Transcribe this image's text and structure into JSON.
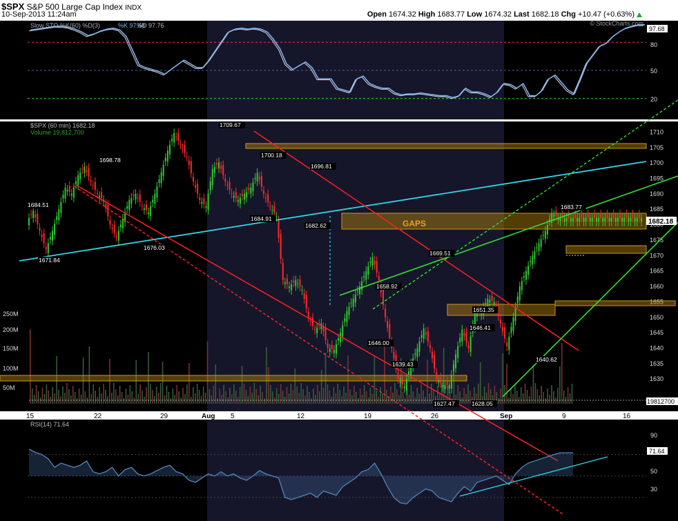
{
  "header": {
    "symbol": "$SPX",
    "name": "S&P 500 Large Cap Index",
    "exchange": "INDX",
    "datetime": "10-Sep-2013 11:24am",
    "open_label": "Open",
    "open": "1674.32",
    "high_label": "High",
    "high": "1683.77",
    "low_label": "Low",
    "low": "1674.32",
    "last_label": "Last",
    "last": "1682.18",
    "chg_label": "Chg",
    "chg": "+10.47 (+0.63%)",
    "watermark": "© StockCharts.com"
  },
  "colors": {
    "background": "#000000",
    "band": "#1c1c2e",
    "price_candles_up": "#2ecc2e",
    "price_candles_down": "#ff2a2a",
    "trend_red": "#ff2020",
    "trend_cyan": "#33d6e8",
    "trend_green": "#33e033",
    "gap_box": "#b8860b",
    "stoch_line": "#7fb2e8",
    "rsi_line": "#4f7fb0",
    "volume_bars": "#5a5a6a"
  },
  "chart_data": [
    {
      "type": "line",
      "title": "Slow STO %K(60) %D(3)",
      "legend": [
        "%K 97.68",
        "%D 97.76"
      ],
      "current_value_tag": "97.68",
      "ylim": [
        0,
        100
      ],
      "y_ticks": [
        "80",
        "50",
        "20"
      ],
      "reference_lines": [
        {
          "value": 80,
          "color": "red",
          "style": "dashed"
        },
        {
          "value": 50,
          "color": "blue",
          "style": "dashed"
        },
        {
          "value": 20,
          "color": "green",
          "style": "dashed"
        }
      ],
      "series": [
        {
          "name": "%K",
          "x": [
            0,
            2,
            4,
            6,
            8,
            10,
            12,
            14,
            16,
            18,
            20,
            22,
            24,
            26,
            28,
            30,
            32,
            34,
            36,
            38,
            40,
            42,
            44,
            46,
            48,
            50,
            52,
            54,
            56,
            58,
            60,
            62,
            64,
            66,
            68,
            70,
            72,
            74,
            76,
            78,
            80,
            82,
            84,
            86,
            88,
            90,
            92,
            94,
            96,
            98,
            100,
            102,
            104,
            106,
            108,
            110,
            112,
            114,
            116,
            118,
            120,
            122,
            124,
            126,
            128,
            130,
            132,
            134,
            136,
            138,
            140,
            142,
            144,
            146,
            148,
            150,
            152,
            154,
            156,
            158,
            160,
            162,
            164,
            166,
            168,
            170,
            172,
            174,
            176,
            178,
            180,
            182,
            184,
            186,
            188,
            190,
            192
          ],
          "values": [
            92,
            93,
            94,
            95,
            96,
            96,
            95,
            93,
            90,
            86,
            88,
            91,
            93,
            94,
            92,
            85,
            70,
            55,
            52,
            50,
            48,
            45,
            50,
            55,
            60,
            56,
            52,
            52,
            60,
            70,
            80,
            90,
            93,
            94,
            93,
            94,
            93,
            90,
            82,
            72,
            56,
            50,
            54,
            58,
            52,
            40,
            40,
            40,
            30,
            28,
            26,
            40,
            43,
            35,
            32,
            30,
            30,
            25,
            23,
            24,
            24,
            25,
            24,
            23,
            22,
            22,
            20,
            22,
            30,
            26,
            26,
            24,
            21,
            26,
            35,
            34,
            30,
            35,
            22,
            22,
            28,
            40,
            44,
            36,
            28,
            24,
            40,
            57,
            66,
            75,
            78,
            85,
            90,
            94,
            96,
            97.7,
            97.7
          ]
        }
      ]
    },
    {
      "type": "line",
      "title": "$SPX (60 min) 1682.18",
      "volume_label": "Volume 19,812,700",
      "current_value_tag": "1682.18",
      "volume_tag": "19812700",
      "ylim": [
        1622,
        1713
      ],
      "y_ticks": [
        "1710",
        "1705",
        "1700",
        "1695",
        "1690",
        "1685",
        "1680",
        "1675",
        "1670",
        "1665",
        "1660",
        "1655",
        "1650",
        "1645",
        "1640",
        "1635",
        "1630"
      ],
      "volume_ticks": [
        "250M",
        "200M",
        "150M",
        "100M",
        "50M"
      ],
      "x_ticks": [
        "15",
        "22",
        "29",
        "Aug",
        "5",
        "12",
        "19",
        "26",
        "Sep",
        "9",
        "16"
      ],
      "price_annotations": [
        "1684.51",
        "1698.78",
        "1671.84",
        "1676.03",
        "1709.67",
        "1700.18",
        "1684.91",
        "1696.81",
        "1682.62",
        "1658.92",
        "1646.00",
        "1669.51",
        "1639.43",
        "1627.47",
        "1646.41",
        "1651.35",
        "1628.05",
        "1640.62",
        "1683.77"
      ],
      "gap_label": "GAPS",
      "series": [
        {
          "name": "$SPX",
          "x": [
            0,
            2,
            4,
            6,
            8,
            10,
            12,
            14,
            16,
            18,
            20,
            22,
            24,
            26,
            28,
            30,
            32,
            34,
            36,
            38,
            40,
            42,
            44,
            46,
            48,
            50,
            52,
            54,
            56,
            58,
            60,
            62,
            64,
            66,
            68,
            70,
            72,
            74,
            76,
            78,
            80,
            82,
            84,
            86,
            88,
            90,
            92,
            94,
            96,
            98,
            100,
            102,
            104,
            106,
            108,
            110,
            112,
            114,
            116,
            118,
            120,
            122,
            124,
            126,
            128,
            130,
            132,
            134,
            136,
            138,
            140,
            142,
            144,
            146,
            148,
            150,
            152,
            154,
            156,
            158,
            160,
            162,
            164,
            166,
            168,
            170,
            172,
            174,
            176,
            178,
            180,
            182,
            184,
            186,
            188,
            190,
            192
          ],
          "values": [
            1681,
            1684.5,
            1678,
            1672,
            1678,
            1685,
            1692,
            1690,
            1696,
            1698.8,
            1694,
            1690,
            1688,
            1680,
            1676,
            1682,
            1688,
            1690,
            1686,
            1684,
            1690,
            1697,
            1704,
            1709.7,
            1706,
            1702,
            1694,
            1688,
            1686,
            1698,
            1700.2,
            1694,
            1690,
            1688,
            1690,
            1692,
            1696.8,
            1690,
            1686,
            1682.6,
            1662,
            1660,
            1662,
            1658.9,
            1650,
            1646,
            1648,
            1640,
            1639.4,
            1645,
            1652,
            1656,
            1660,
            1665,
            1669.5,
            1662,
            1650,
            1640,
            1630,
            1627.5,
            1635,
            1640,
            1646.4,
            1640,
            1630,
            1628,
            1628.1,
            1638,
            1646,
            1640,
            1651.4,
            1652,
            1656,
            1655,
            1648,
            1640.6,
            1650,
            1660,
            1665,
            1670,
            1674,
            1678,
            1683.8,
            1682.2,
            1682.2,
            1682.2,
            1682.2,
            1682.2,
            1682.2,
            1682.2,
            1682.2,
            1682.2,
            1682.2,
            1682.2,
            1682.2,
            1682.2,
            1682.2
          ]
        }
      ]
    },
    {
      "type": "line",
      "title": "RSI(14) 71.64",
      "current_value_tag": "71.64",
      "ylim": [
        10,
        100
      ],
      "y_ticks": [
        "90",
        "70",
        "50",
        "30"
      ],
      "series": [
        {
          "name": "RSI(14)",
          "x": [
            0,
            2,
            4,
            6,
            8,
            10,
            12,
            14,
            16,
            18,
            20,
            22,
            24,
            26,
            28,
            30,
            32,
            34,
            36,
            38,
            40,
            42,
            44,
            46,
            48,
            50,
            52,
            54,
            56,
            58,
            60,
            62,
            64,
            66,
            68,
            70,
            72,
            74,
            76,
            78,
            80,
            82,
            84,
            86,
            88,
            90,
            92,
            94,
            96,
            98,
            100,
            102,
            104,
            106,
            108,
            110,
            112,
            114,
            116,
            118,
            120,
            122,
            124,
            126,
            128,
            130,
            132,
            134,
            136,
            138,
            140,
            142,
            144,
            146,
            148,
            150,
            152,
            154,
            156,
            158,
            160,
            162,
            164,
            166,
            168,
            170,
            172,
            174,
            176,
            178,
            180,
            182,
            184,
            186,
            188,
            190,
            192
          ],
          "values": [
            75,
            72,
            70,
            66,
            58,
            62,
            60,
            58,
            60,
            64,
            54,
            52,
            54,
            58,
            50,
            56,
            58,
            52,
            50,
            52,
            55,
            58,
            60,
            54,
            52,
            46,
            44,
            48,
            52,
            50,
            54,
            50,
            52,
            48,
            46,
            50,
            55,
            52,
            50,
            48,
            30,
            28,
            30,
            32,
            34,
            30,
            36,
            34,
            32,
            40,
            44,
            48,
            54,
            56,
            62,
            52,
            40,
            30,
            25,
            24,
            30,
            34,
            38,
            36,
            30,
            28,
            26,
            34,
            40,
            36,
            44,
            46,
            48,
            50,
            46,
            42,
            52,
            58,
            62,
            64,
            66,
            68,
            70,
            71.6,
            71.6,
            71.6,
            71.6,
            71.6,
            71.6,
            71.6,
            71.6,
            71.6,
            71.6,
            71.6,
            71.6,
            71.6,
            71.6
          ]
        }
      ]
    }
  ]
}
